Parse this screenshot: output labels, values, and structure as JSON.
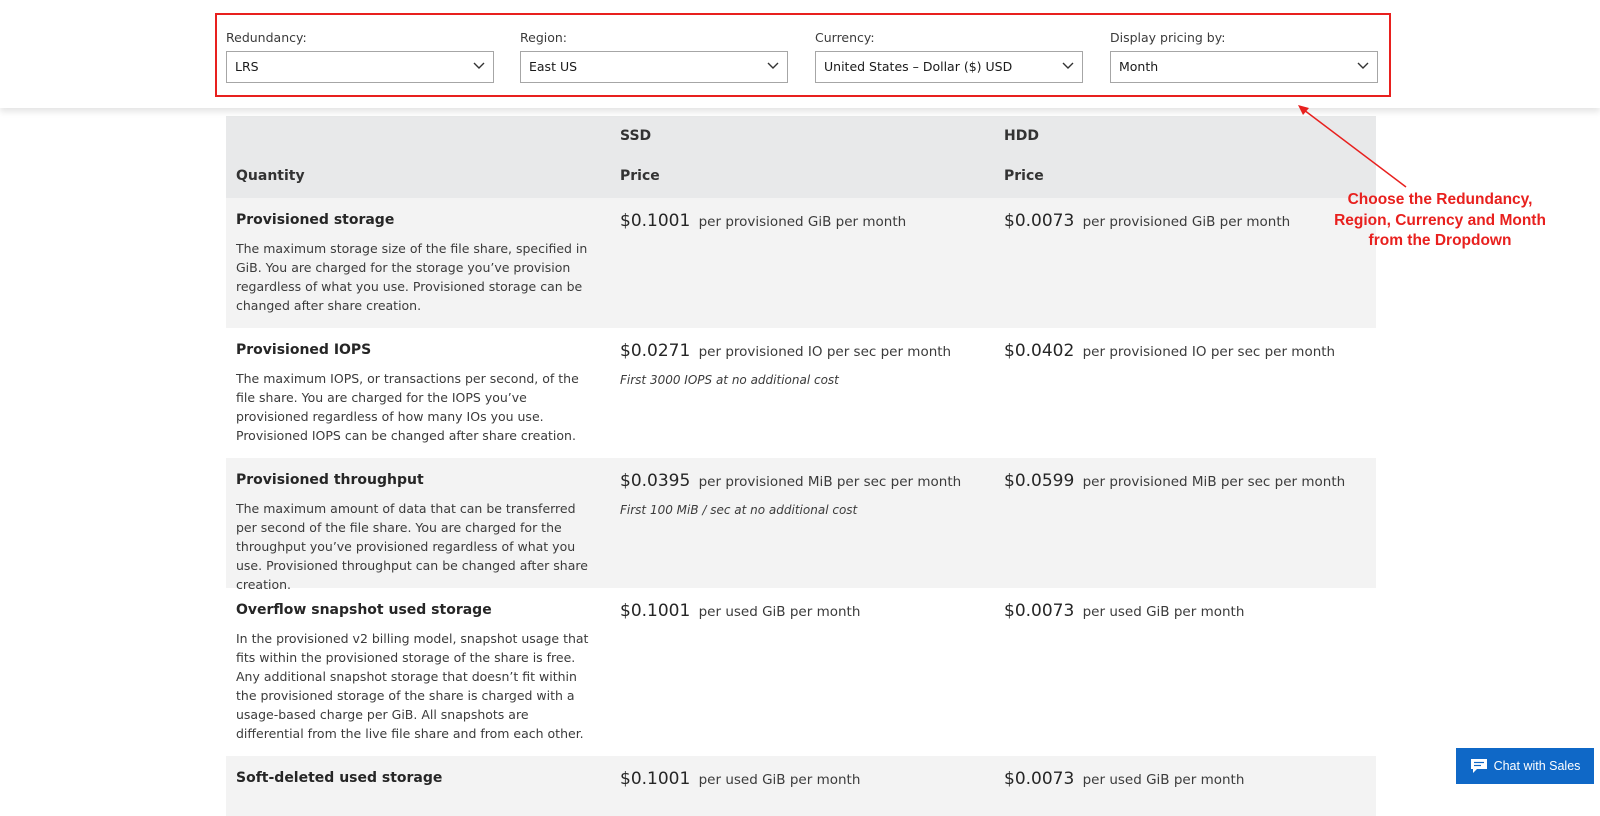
{
  "filters": [
    {
      "label": "Redundancy:",
      "value": "LRS"
    },
    {
      "label": "Region:",
      "value": "East US"
    },
    {
      "label": "Currency:",
      "value": "United States – Dollar ($) USD"
    },
    {
      "label": "Display pricing by:",
      "value": "Month"
    }
  ],
  "table": {
    "header": {
      "quantity": "Quantity",
      "ssd": "SSD",
      "hdd": "HDD",
      "price": "Price"
    },
    "rows": [
      {
        "title": "Provisioned storage",
        "desc": "The maximum storage size of the file share, specified in GiB. You are charged for the storage you’ve provision regardless of what you use. Provisioned storage can be changed after share creation.",
        "ssd_amt": "$0.1001",
        "ssd_unit": "per provisioned GiB per month",
        "ssd_note": "",
        "hdd_amt": "$0.0073",
        "hdd_unit": "per provisioned GiB per month"
      },
      {
        "title": "Provisioned IOPS",
        "desc": "The maximum IOPS, or transactions per second, of the file share. You are charged for the IOPS you’ve provisioned regardless of how many IOs you use. Provisioned IOPS can be changed after share creation.",
        "ssd_amt": "$0.0271",
        "ssd_unit": "per provisioned IO per sec per month",
        "ssd_note": "First 3000 IOPS at no additional cost",
        "hdd_amt": "$0.0402",
        "hdd_unit": "per provisioned IO per sec per month"
      },
      {
        "title": "Provisioned throughput",
        "desc": "The maximum amount of data that can be transferred per second of the file share. You are charged for the throughput you’ve provisioned regardless of what you use. Provisioned throughput can be changed after share creation.",
        "ssd_amt": "$0.0395",
        "ssd_unit": "per provisioned MiB per sec per month",
        "ssd_note": "First 100 MiB / sec at no additional cost",
        "hdd_amt": "$0.0599",
        "hdd_unit": "per provisioned MiB per sec per month"
      },
      {
        "title": "Overflow snapshot used storage",
        "desc": "In the provisioned v2 billing model, snapshot usage that fits within the provisioned storage of the share is free. Any additional snapshot storage that doesn’t fit within the provisioned storage of the share is charged with a usage-based charge per GiB. All snapshots are differential from the live file share and from each other.",
        "ssd_amt": "$0.1001",
        "ssd_unit": "per used GiB per month",
        "ssd_note": "",
        "hdd_amt": "$0.0073",
        "hdd_unit": "per used GiB per month"
      },
      {
        "title": "Soft-deleted used storage",
        "desc": "",
        "ssd_amt": "$0.1001",
        "ssd_unit": "per used GiB per month",
        "ssd_note": "",
        "hdd_amt": "$0.0073",
        "hdd_unit": "per used GiB per month"
      }
    ]
  },
  "annotation": {
    "line1": "Choose the Redundancy,",
    "line2": "Region, Currency and Month",
    "line3": "from the Dropdown",
    "color": "#e8201e"
  },
  "chat": {
    "label": "Chat with Sales",
    "icon": "chat-bubble-icon"
  }
}
